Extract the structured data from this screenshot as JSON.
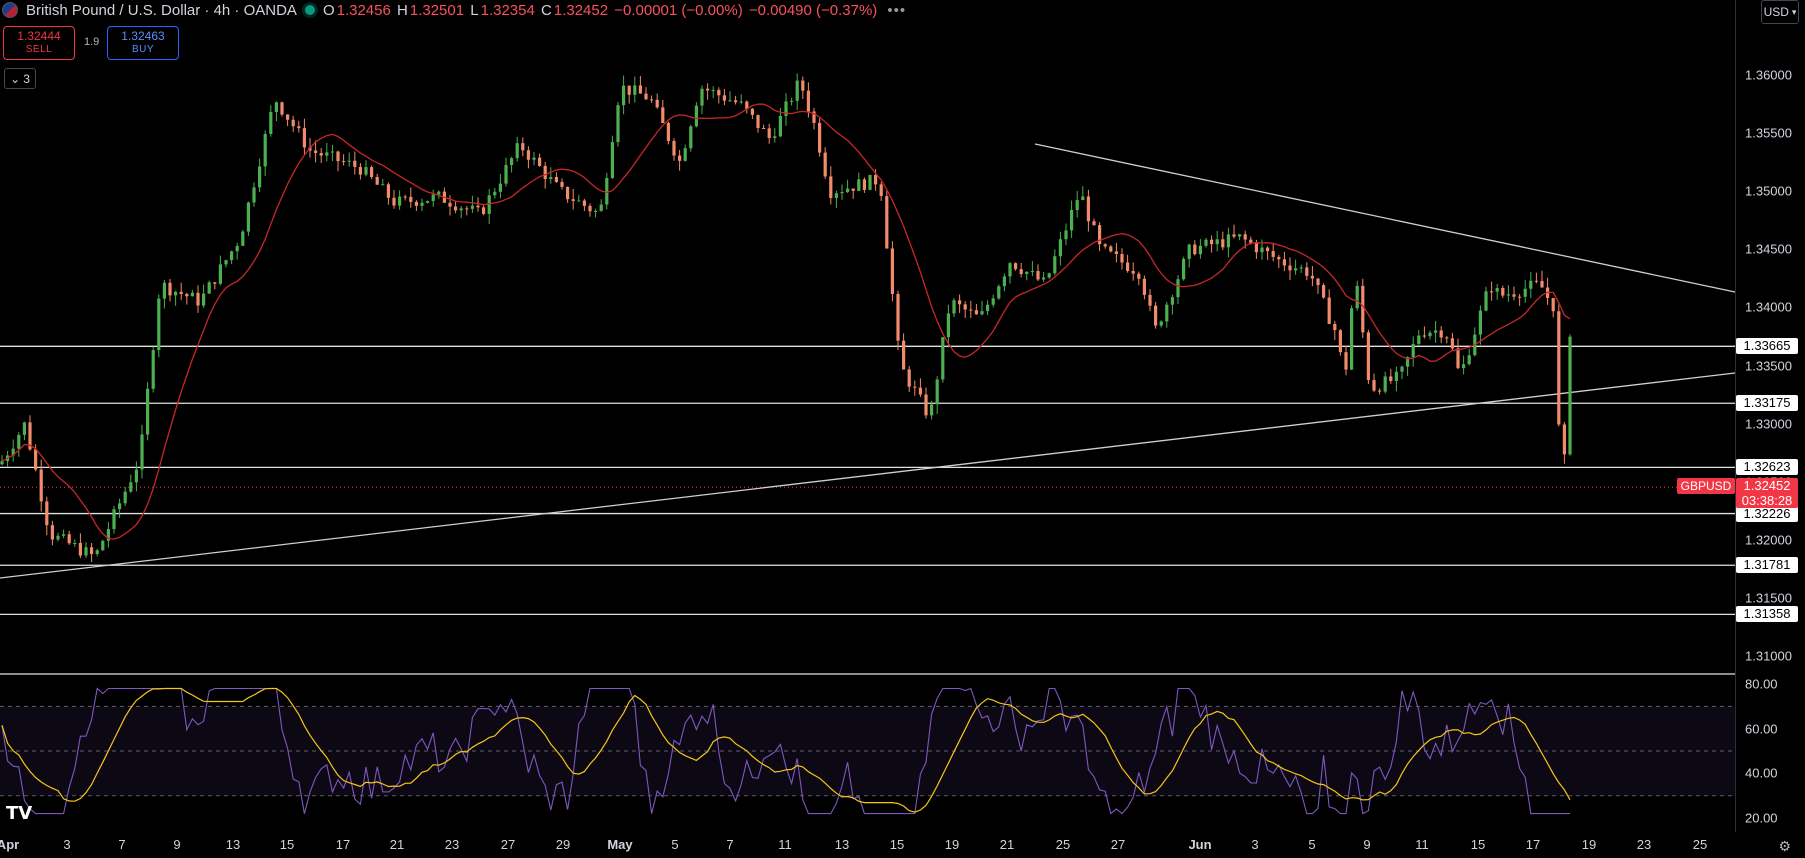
{
  "header": {
    "title": "British Pound / U.S. Dollar · 4h · OANDA",
    "open_label": "O",
    "open": "1.32456",
    "high_label": "H",
    "high": "1.32501",
    "low_label": "L",
    "low": "1.32354",
    "close_label": "C",
    "close": "1.32452",
    "change": "−0.00001 (−0.00%)",
    "change2": "−0.00490 (−0.37%)",
    "more": "•••"
  },
  "trade": {
    "sell_price": "1.32444",
    "sell_label": "SELL",
    "spread": "1.9",
    "buy_price": "1.32463",
    "buy_label": "BUY"
  },
  "indicators_collapse": "3",
  "currency": "USD",
  "price_axis": [
    "1.36000",
    "1.35500",
    "1.35000",
    "1.34500",
    "1.34000",
    "1.33500",
    "1.33000",
    "1.32500",
    "1.32000",
    "1.31500",
    "1.31000"
  ],
  "levels": [
    "1.33665",
    "1.33175",
    "1.32623",
    "1.32226",
    "1.31781",
    "1.31358"
  ],
  "current": {
    "symbol": "GBPUSD",
    "price": "1.32452",
    "countdown": "03:38:28"
  },
  "rsi_axis": [
    "80.00",
    "60.00",
    "40.00",
    "20.00"
  ],
  "date_axis": [
    "Apr",
    "3",
    "7",
    "9",
    "13",
    "15",
    "17",
    "21",
    "23",
    "27",
    "29",
    "May",
    "5",
    "7",
    "11",
    "13",
    "15",
    "19",
    "21",
    "25",
    "27",
    "Jun",
    "3",
    "5",
    "9",
    "11",
    "15",
    "17",
    "19",
    "23",
    "25"
  ],
  "colors": {
    "up": "#4caf50",
    "down": "#f28b6a",
    "ma": "#c62828",
    "rsi": "#7e57c2",
    "rsi_ma": "#f5c518",
    "current": "#f23645"
  }
}
